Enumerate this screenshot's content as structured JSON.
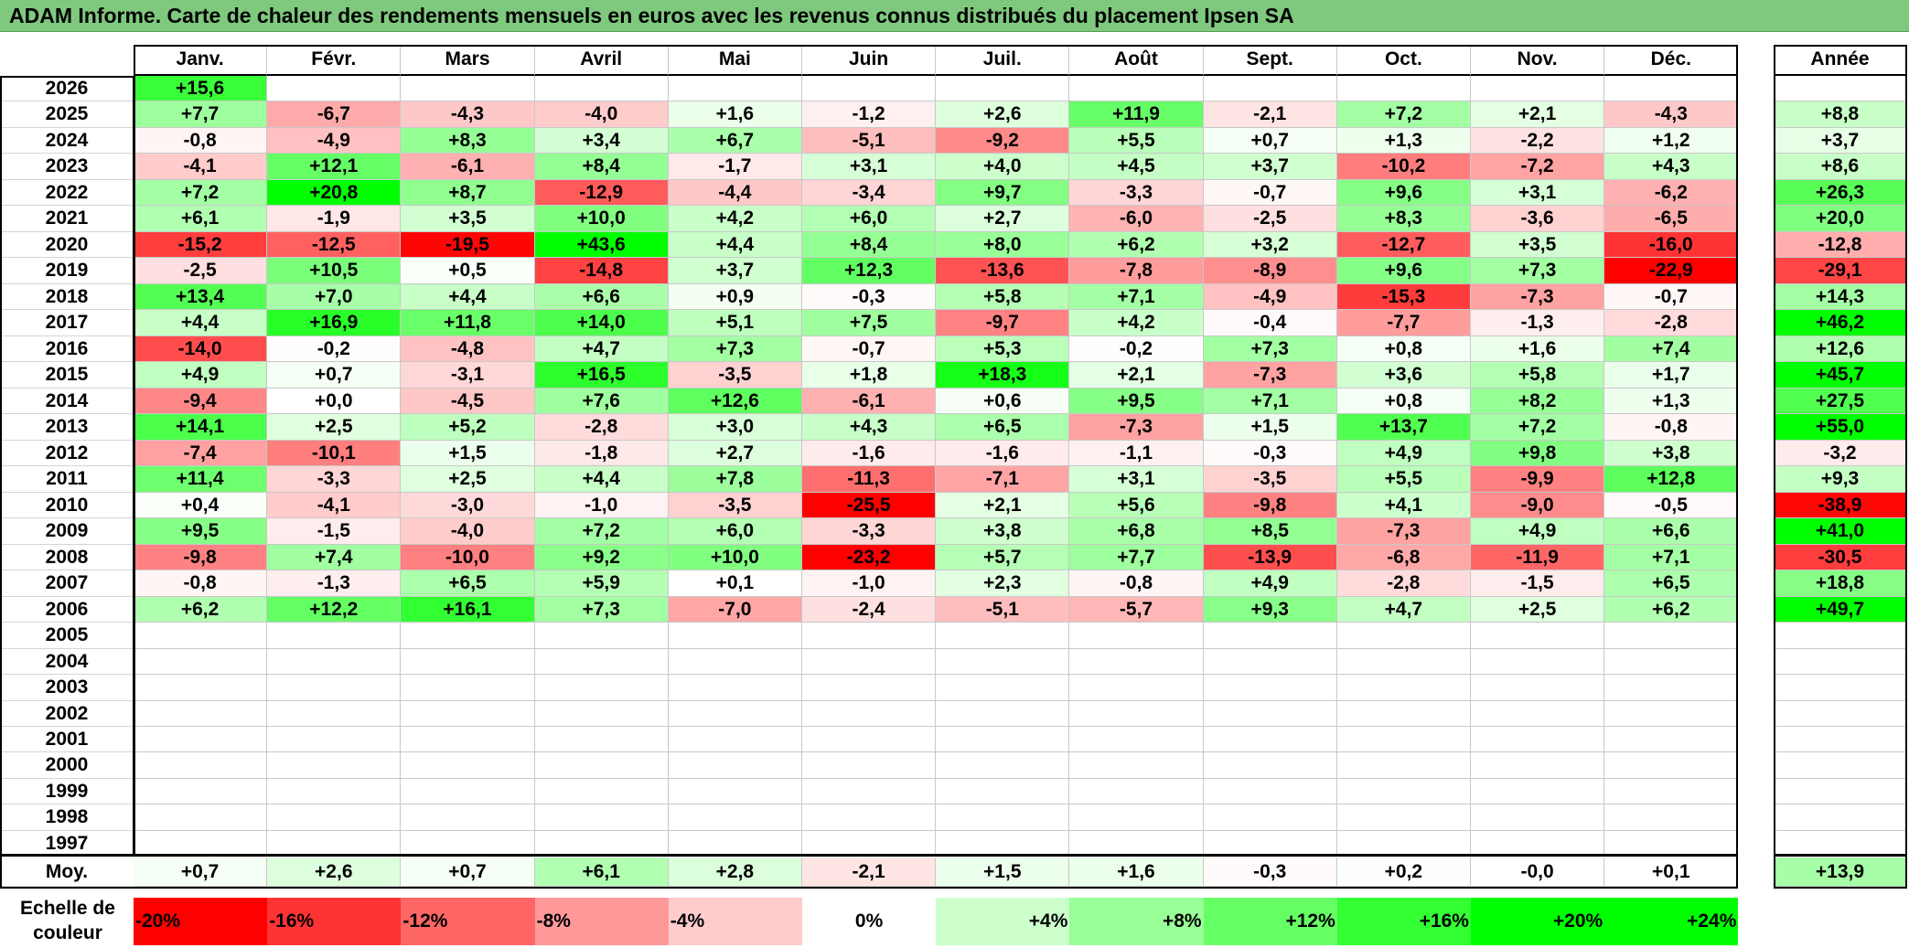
{
  "title": "ADAM Informe. Carte de chaleur des rendements mensuels en euros avec les revenus connus distribués du placement Ipsen SA",
  "months": [
    "Janv.",
    "Févr.",
    "Mars",
    "Avril",
    "Mai",
    "Juin",
    "Juil.",
    "Août",
    "Sept.",
    "Oct.",
    "Nov.",
    "Déc."
  ],
  "year_header": "Année",
  "avg_label": "Moy.",
  "legend_label": "Echelle de couleur",
  "chart_data": {
    "type": "heatmap",
    "title": "ADAM Informe. Carte de chaleur des rendements mensuels en euros avec les revenus connus distribués du placement Ipsen SA",
    "columns": [
      "Janv.",
      "Févr.",
      "Mars",
      "Avril",
      "Mai",
      "Juin",
      "Juil.",
      "Août",
      "Sept.",
      "Oct.",
      "Nov.",
      "Déc."
    ],
    "rows": [
      {
        "year": "2026",
        "months": [
          "+15,6",
          "",
          "",
          "",
          "",
          "",
          "",
          "",
          "",
          "",
          "",
          ""
        ],
        "annual": ""
      },
      {
        "year": "2025",
        "months": [
          "+7,7",
          "-6,7",
          "-4,3",
          "-4,0",
          "+1,6",
          "-1,2",
          "+2,6",
          "+11,9",
          "-2,1",
          "+7,2",
          "+2,1",
          "-4,3"
        ],
        "annual": "+8,8"
      },
      {
        "year": "2024",
        "months": [
          "-0,8",
          "-4,9",
          "+8,3",
          "+3,4",
          "+6,7",
          "-5,1",
          "-9,2",
          "+5,5",
          "+0,7",
          "+1,3",
          "-2,2",
          "+1,2"
        ],
        "annual": "+3,7"
      },
      {
        "year": "2023",
        "months": [
          "-4,1",
          "+12,1",
          "-6,1",
          "+8,4",
          "-1,7",
          "+3,1",
          "+4,0",
          "+4,5",
          "+3,7",
          "-10,2",
          "-7,2",
          "+4,3"
        ],
        "annual": "+8,6"
      },
      {
        "year": "2022",
        "months": [
          "+7,2",
          "+20,8",
          "+8,7",
          "-12,9",
          "-4,4",
          "-3,4",
          "+9,7",
          "-3,3",
          "-0,7",
          "+9,6",
          "+3,1",
          "-6,2"
        ],
        "annual": "+26,3"
      },
      {
        "year": "2021",
        "months": [
          "+6,1",
          "-1,9",
          "+3,5",
          "+10,0",
          "+4,2",
          "+6,0",
          "+2,7",
          "-6,0",
          "-2,5",
          "+8,3",
          "-3,6",
          "-6,5"
        ],
        "annual": "+20,0"
      },
      {
        "year": "2020",
        "months": [
          "-15,2",
          "-12,5",
          "-19,5",
          "+43,6",
          "+4,4",
          "+8,4",
          "+8,0",
          "+6,2",
          "+3,2",
          "-12,7",
          "+3,5",
          "-16,0"
        ],
        "annual": "-12,8"
      },
      {
        "year": "2019",
        "months": [
          "-2,5",
          "+10,5",
          "+0,5",
          "-14,8",
          "+3,7",
          "+12,3",
          "-13,6",
          "-7,8",
          "-8,9",
          "+9,6",
          "+7,3",
          "-22,9"
        ],
        "annual": "-29,1"
      },
      {
        "year": "2018",
        "months": [
          "+13,4",
          "+7,0",
          "+4,4",
          "+6,6",
          "+0,9",
          "-0,3",
          "+5,8",
          "+7,1",
          "-4,9",
          "-15,3",
          "-7,3",
          "-0,7"
        ],
        "annual": "+14,3"
      },
      {
        "year": "2017",
        "months": [
          "+4,4",
          "+16,9",
          "+11,8",
          "+14,0",
          "+5,1",
          "+7,5",
          "-9,7",
          "+4,2",
          "-0,4",
          "-7,7",
          "-1,3",
          "-2,8"
        ],
        "annual": "+46,2"
      },
      {
        "year": "2016",
        "months": [
          "-14,0",
          "-0,2",
          "-4,8",
          "+4,7",
          "+7,3",
          "-0,7",
          "+5,3",
          "-0,2",
          "+7,3",
          "+0,8",
          "+1,6",
          "+7,4"
        ],
        "annual": "+12,6"
      },
      {
        "year": "2015",
        "months": [
          "+4,9",
          "+0,7",
          "-3,1",
          "+16,5",
          "-3,5",
          "+1,8",
          "+18,3",
          "+2,1",
          "-7,3",
          "+3,6",
          "+5,8",
          "+1,7"
        ],
        "annual": "+45,7"
      },
      {
        "year": "2014",
        "months": [
          "-9,4",
          "+0,0",
          "-4,5",
          "+7,6",
          "+12,6",
          "-6,1",
          "+0,6",
          "+9,5",
          "+7,1",
          "+0,8",
          "+8,2",
          "+1,3"
        ],
        "annual": "+27,5"
      },
      {
        "year": "2013",
        "months": [
          "+14,1",
          "+2,5",
          "+5,2",
          "-2,8",
          "+3,0",
          "+4,3",
          "+6,5",
          "-7,3",
          "+1,5",
          "+13,7",
          "+7,2",
          "-0,8"
        ],
        "annual": "+55,0"
      },
      {
        "year": "2012",
        "months": [
          "-7,4",
          "-10,1",
          "+1,5",
          "-1,8",
          "+2,7",
          "-1,6",
          "-1,6",
          "-1,1",
          "-0,3",
          "+4,9",
          "+9,8",
          "+3,8"
        ],
        "annual": "-3,2"
      },
      {
        "year": "2011",
        "months": [
          "+11,4",
          "-3,3",
          "+2,5",
          "+4,4",
          "+7,8",
          "-11,3",
          "-7,1",
          "+3,1",
          "-3,5",
          "+5,5",
          "-9,9",
          "+12,8"
        ],
        "annual": "+9,3"
      },
      {
        "year": "2010",
        "months": [
          "+0,4",
          "-4,1",
          "-3,0",
          "-1,0",
          "-3,5",
          "-25,5",
          "+2,1",
          "+5,6",
          "-9,8",
          "+4,1",
          "-9,0",
          "-0,5"
        ],
        "annual": "-38,9"
      },
      {
        "year": "2009",
        "months": [
          "+9,5",
          "-1,5",
          "-4,0",
          "+7,2",
          "+6,0",
          "-3,3",
          "+3,8",
          "+6,8",
          "+8,5",
          "-7,3",
          "+4,9",
          "+6,6"
        ],
        "annual": "+41,0"
      },
      {
        "year": "2008",
        "months": [
          "-9,8",
          "+7,4",
          "-10,0",
          "+9,2",
          "+10,0",
          "-23,2",
          "+5,7",
          "+7,7",
          "-13,9",
          "-6,8",
          "-11,9",
          "+7,1"
        ],
        "annual": "-30,5"
      },
      {
        "year": "2007",
        "months": [
          "-0,8",
          "-1,3",
          "+6,5",
          "+5,9",
          "+0,1",
          "-1,0",
          "+2,3",
          "-0,8",
          "+4,9",
          "-2,8",
          "-1,5",
          "+6,5"
        ],
        "annual": "+18,8"
      },
      {
        "year": "2006",
        "months": [
          "+6,2",
          "+12,2",
          "+16,1",
          "+7,3",
          "-7,0",
          "-2,4",
          "-5,1",
          "-5,7",
          "+9,3",
          "+4,7",
          "+2,5",
          "+6,2"
        ],
        "annual": "+49,7"
      },
      {
        "year": "2005",
        "months": [
          "",
          "",
          "",
          "",
          "",
          "",
          "",
          "",
          "",
          "",
          "",
          ""
        ],
        "annual": ""
      },
      {
        "year": "2004",
        "months": [
          "",
          "",
          "",
          "",
          "",
          "",
          "",
          "",
          "",
          "",
          "",
          ""
        ],
        "annual": ""
      },
      {
        "year": "2003",
        "months": [
          "",
          "",
          "",
          "",
          "",
          "",
          "",
          "",
          "",
          "",
          "",
          ""
        ],
        "annual": ""
      },
      {
        "year": "2002",
        "months": [
          "",
          "",
          "",
          "",
          "",
          "",
          "",
          "",
          "",
          "",
          "",
          ""
        ],
        "annual": ""
      },
      {
        "year": "2001",
        "months": [
          "",
          "",
          "",
          "",
          "",
          "",
          "",
          "",
          "",
          "",
          "",
          ""
        ],
        "annual": ""
      },
      {
        "year": "2000",
        "months": [
          "",
          "",
          "",
          "",
          "",
          "",
          "",
          "",
          "",
          "",
          "",
          ""
        ],
        "annual": ""
      },
      {
        "year": "1999",
        "months": [
          "",
          "",
          "",
          "",
          "",
          "",
          "",
          "",
          "",
          "",
          "",
          ""
        ],
        "annual": ""
      },
      {
        "year": "1998",
        "months": [
          "",
          "",
          "",
          "",
          "",
          "",
          "",
          "",
          "",
          "",
          "",
          ""
        ],
        "annual": ""
      },
      {
        "year": "1997",
        "months": [
          "",
          "",
          "",
          "",
          "",
          "",
          "",
          "",
          "",
          "",
          "",
          ""
        ],
        "annual": ""
      }
    ],
    "averages": {
      "months": [
        "+0,7",
        "+2,6",
        "+0,7",
        "+6,1",
        "+2,8",
        "-2,1",
        "+1,5",
        "+1,6",
        "-0,3",
        "+0,2",
        "-0,0",
        "+0,1"
      ],
      "annual": "+13,9"
    },
    "color_scale": [
      "-20%",
      "-16%",
      "-12%",
      "-8%",
      "-4%",
      "0%",
      "+4%",
      "+8%",
      "+12%",
      "+16%",
      "+20%",
      "+24%"
    ],
    "colors": {
      "negative": "#ff0000",
      "neutral": "#ffffff",
      "positive": "#00ff00"
    }
  }
}
